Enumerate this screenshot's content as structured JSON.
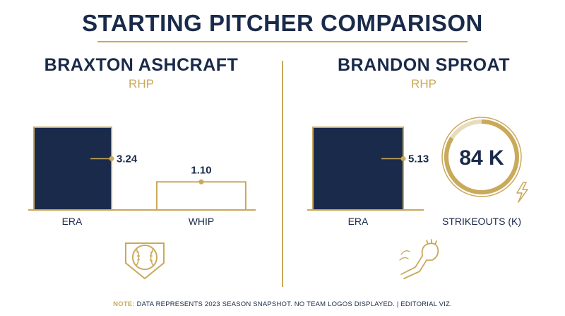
{
  "title": "STARTING PITCHER COMPARISON",
  "colors": {
    "navy": "#1a2a4a",
    "gold": "#c9a95a",
    "white": "#ffffff"
  },
  "players": [
    {
      "name": "BRAXTON ASHCRAFT",
      "position": "RHP",
      "icon": "baseball-home-plate-icon"
    },
    {
      "name": "BRANDON SPROAT",
      "position": "RHP",
      "icon": "pitching-arm-glove-icon"
    }
  ],
  "footer": {
    "note_label": "NOTE:",
    "note_text": " DATA REPRESENTS 2023 SEASON SNAPSHOT. NO TEAM LOGOS DISPLAYED.  |  EDITORIAL VIZ."
  },
  "chart_data": [
    {
      "type": "bar",
      "player": "BRAXTON ASHCRAFT",
      "categories": [
        "ERA",
        "WHIP"
      ],
      "values": [
        3.24,
        1.1
      ],
      "labels": [
        "3.24",
        "1.10"
      ]
    },
    {
      "type": "bar",
      "player": "BRANDON SPROAT",
      "categories": [
        "ERA"
      ],
      "values": [
        5.13
      ],
      "labels": [
        "5.13"
      ],
      "gauge": {
        "category": "STRIKEOUTS (K)",
        "value": 84,
        "label": "84 K"
      }
    }
  ]
}
